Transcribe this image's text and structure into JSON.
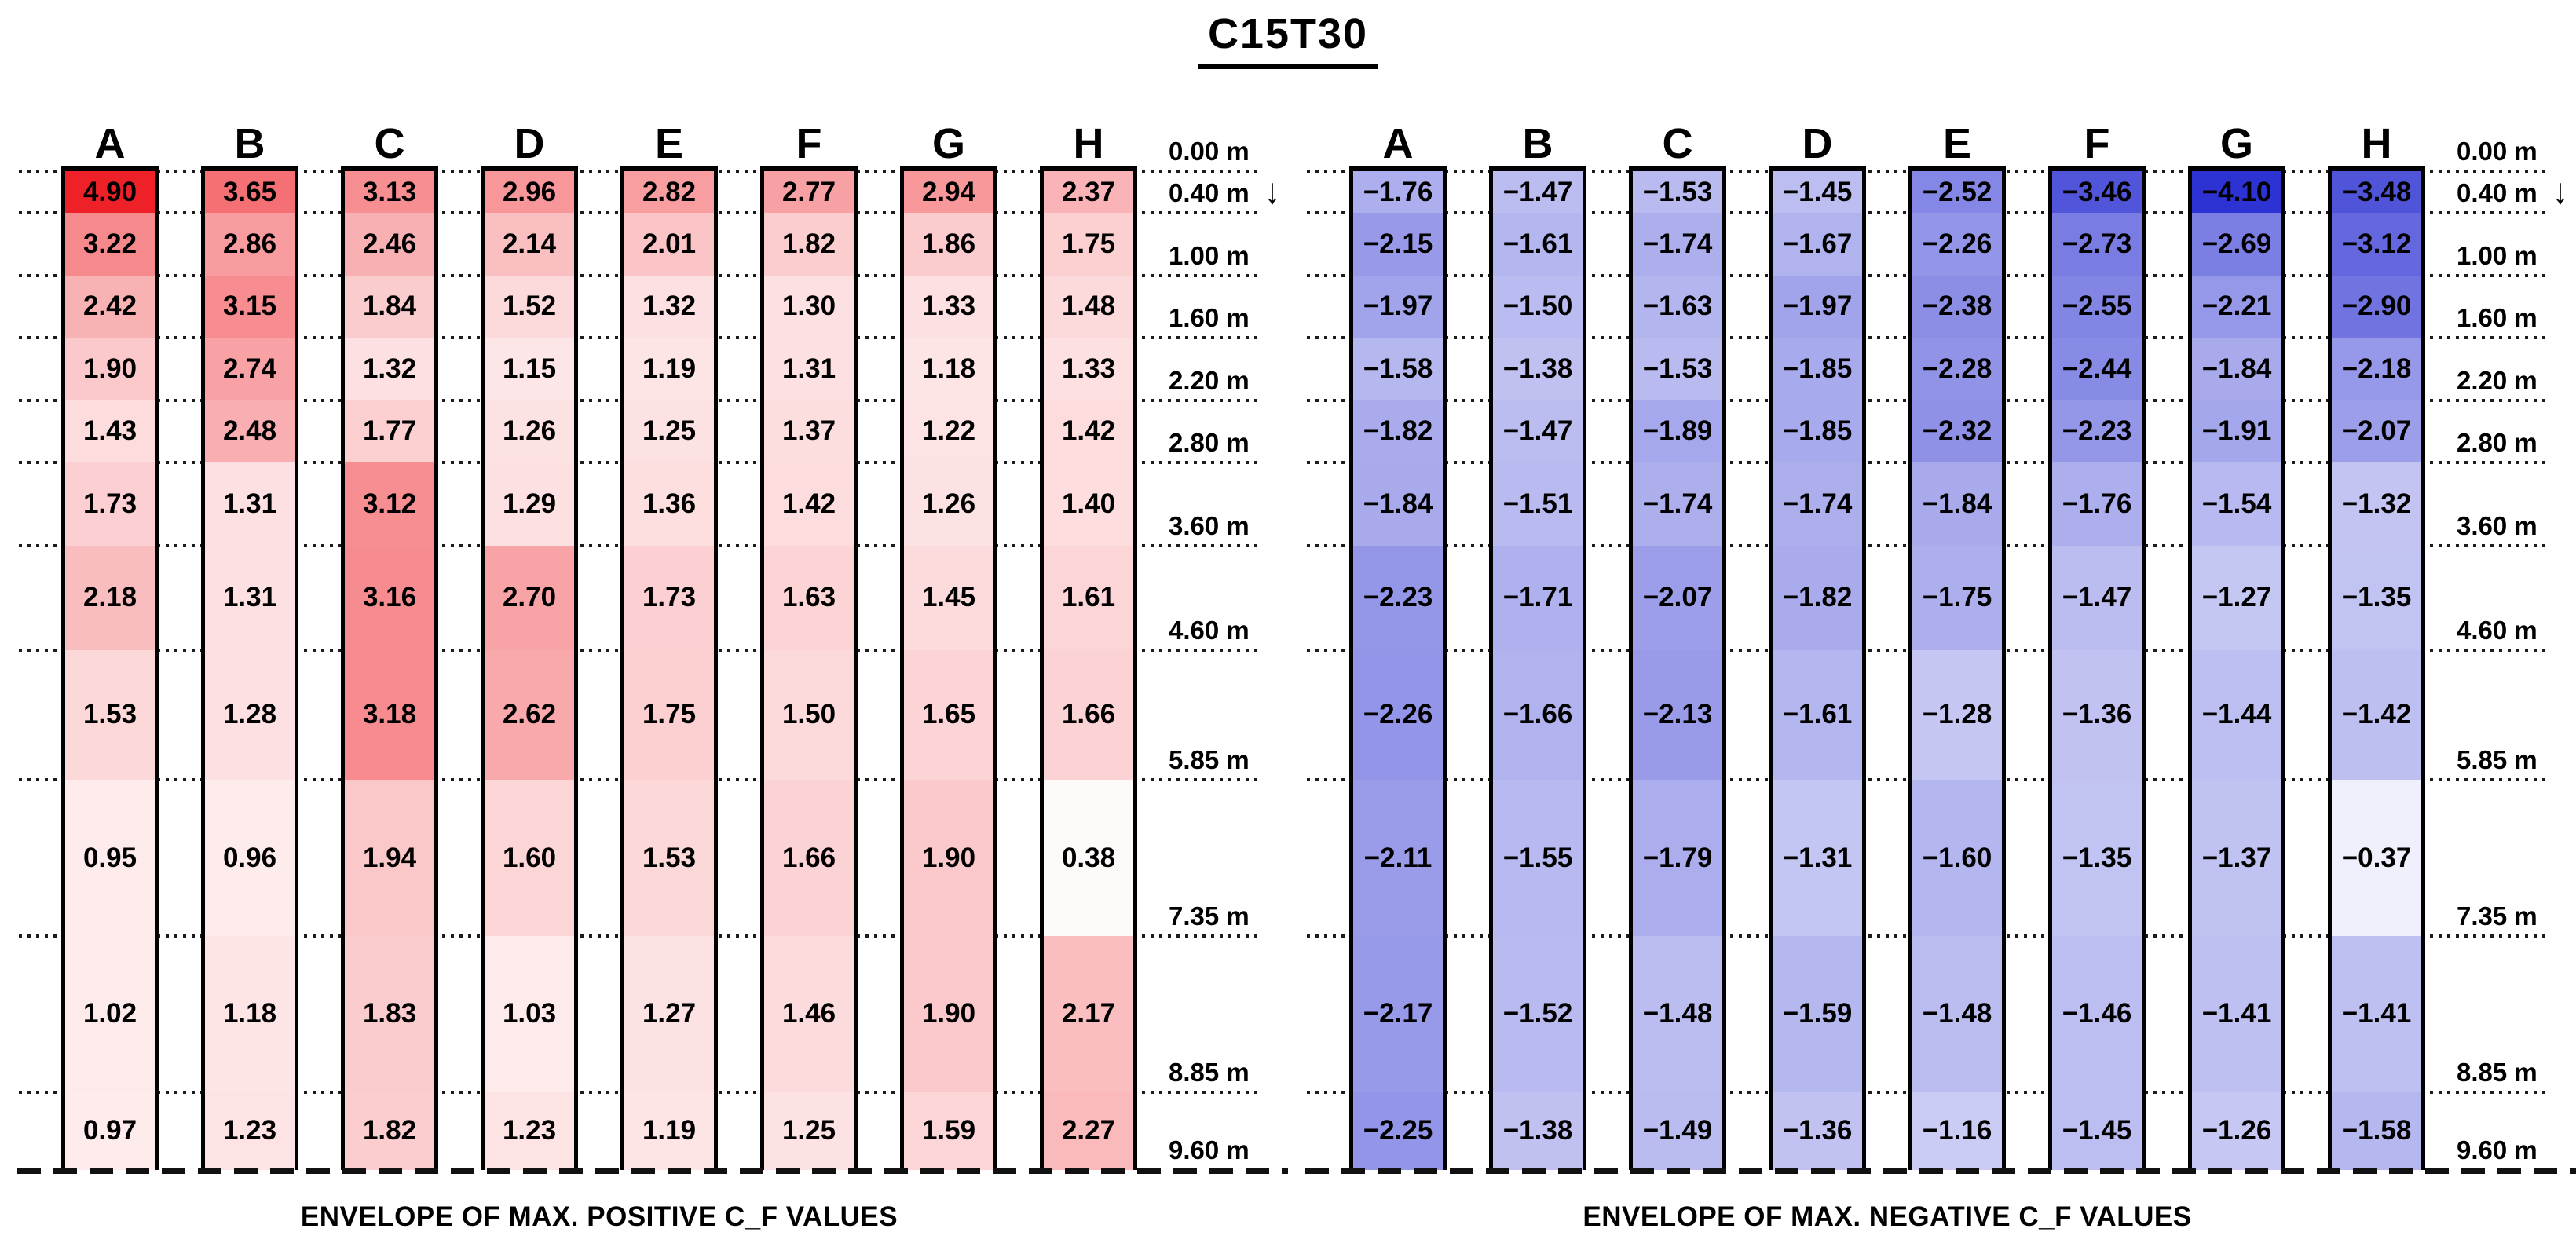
{
  "title": "C15T30",
  "depth_axis": {
    "unit": "m",
    "ticks_m": [
      0,
      0.4,
      1.0,
      1.6,
      2.2,
      2.8,
      3.6,
      4.6,
      5.85,
      7.35,
      8.85,
      9.6
    ],
    "tick_labels": [
      "0.00 m",
      "0.40 m",
      "1.00 m",
      "1.60 m",
      "2.20 m",
      "2.80 m",
      "3.60 m",
      "4.60 m",
      "5.85 m",
      "7.35 m",
      "8.85 m",
      "9.60 m"
    ],
    "direction_arrow": "↓"
  },
  "chart_data": [
    {
      "type": "heatmap",
      "caption": "ENVELOPE OF MAX. POSITIVE C_F VALUES",
      "columns": [
        "A",
        "B",
        "C",
        "D",
        "E",
        "F",
        "G",
        "H"
      ],
      "row_bottom_depths_m": [
        0.4,
        1.0,
        1.6,
        2.2,
        2.8,
        3.6,
        4.6,
        5.85,
        7.35,
        8.85,
        9.6
      ],
      "color": {
        "base": "#ef2128",
        "zero": "#ffffff",
        "max_abs": 4.9,
        "exponent": 1.5
      },
      "series": [
        {
          "name": "A",
          "values": [
            4.9,
            3.22,
            2.42,
            1.9,
            1.43,
            1.73,
            2.18,
            1.53,
            0.95,
            1.02,
            0.97
          ]
        },
        {
          "name": "B",
          "values": [
            3.65,
            2.86,
            3.15,
            2.74,
            2.48,
            1.31,
            1.31,
            1.28,
            0.96,
            1.18,
            1.23
          ]
        },
        {
          "name": "C",
          "values": [
            3.13,
            2.46,
            1.84,
            1.32,
            1.77,
            3.12,
            3.16,
            3.18,
            1.94,
            1.83,
            1.82
          ]
        },
        {
          "name": "D",
          "values": [
            2.96,
            2.14,
            1.52,
            1.15,
            1.26,
            1.29,
            2.7,
            2.62,
            1.6,
            1.03,
            1.23
          ]
        },
        {
          "name": "E",
          "values": [
            2.82,
            2.01,
            1.32,
            1.19,
            1.25,
            1.36,
            1.73,
            1.75,
            1.53,
            1.27,
            1.19
          ]
        },
        {
          "name": "F",
          "values": [
            2.77,
            1.82,
            1.3,
            1.31,
            1.37,
            1.42,
            1.63,
            1.5,
            1.66,
            1.46,
            1.25
          ]
        },
        {
          "name": "G",
          "values": [
            2.94,
            1.86,
            1.33,
            1.18,
            1.22,
            1.26,
            1.45,
            1.65,
            1.9,
            1.9,
            1.59
          ]
        },
        {
          "name": "H",
          "values": [
            2.37,
            1.75,
            1.48,
            1.33,
            1.42,
            1.4,
            1.61,
            1.66,
            0.38,
            2.17,
            2.27
          ]
        }
      ]
    },
    {
      "type": "heatmap",
      "caption": "ENVELOPE OF MAX. NEGATIVE C_F VALUES",
      "columns": [
        "A",
        "B",
        "C",
        "D",
        "E",
        "F",
        "G",
        "H"
      ],
      "row_bottom_depths_m": [
        0.4,
        1.0,
        1.6,
        2.2,
        2.8,
        3.6,
        4.6,
        5.85,
        7.35,
        8.85,
        9.6
      ],
      "color": {
        "base": "#2d32d2",
        "zero": "#ffffff",
        "max_abs": 4.1,
        "exponent": 1.1
      },
      "series": [
        {
          "name": "A",
          "values": [
            -1.76,
            -2.15,
            -1.97,
            -1.58,
            -1.82,
            -1.84,
            -2.23,
            -2.26,
            -2.11,
            -2.17,
            -2.25
          ]
        },
        {
          "name": "B",
          "values": [
            -1.47,
            -1.61,
            -1.5,
            -1.38,
            -1.47,
            -1.51,
            -1.71,
            -1.66,
            -1.55,
            -1.52,
            -1.38
          ]
        },
        {
          "name": "C",
          "values": [
            -1.53,
            -1.74,
            -1.63,
            -1.53,
            -1.89,
            -1.74,
            -2.07,
            -2.13,
            -1.79,
            -1.48,
            -1.49
          ]
        },
        {
          "name": "D",
          "values": [
            -1.45,
            -1.67,
            -1.97,
            -1.85,
            -1.85,
            -1.74,
            -1.82,
            -1.61,
            -1.31,
            -1.59,
            -1.36
          ]
        },
        {
          "name": "E",
          "values": [
            -2.52,
            -2.26,
            -2.38,
            -2.28,
            -2.32,
            -1.84,
            -1.75,
            -1.28,
            -1.6,
            -1.48,
            -1.16
          ]
        },
        {
          "name": "F",
          "values": [
            -3.46,
            -2.73,
            -2.55,
            -2.44,
            -2.23,
            -1.76,
            -1.47,
            -1.36,
            -1.35,
            -1.46,
            -1.45
          ]
        },
        {
          "name": "G",
          "values": [
            -4.1,
            -2.69,
            -2.21,
            -1.84,
            -1.91,
            -1.54,
            -1.27,
            -1.44,
            -1.37,
            -1.41,
            -1.26
          ]
        },
        {
          "name": "H",
          "values": [
            -3.48,
            -3.12,
            -2.9,
            -2.18,
            -2.07,
            -1.32,
            -1.35,
            -1.42,
            -0.37,
            -1.41,
            -1.58
          ]
        }
      ]
    }
  ]
}
